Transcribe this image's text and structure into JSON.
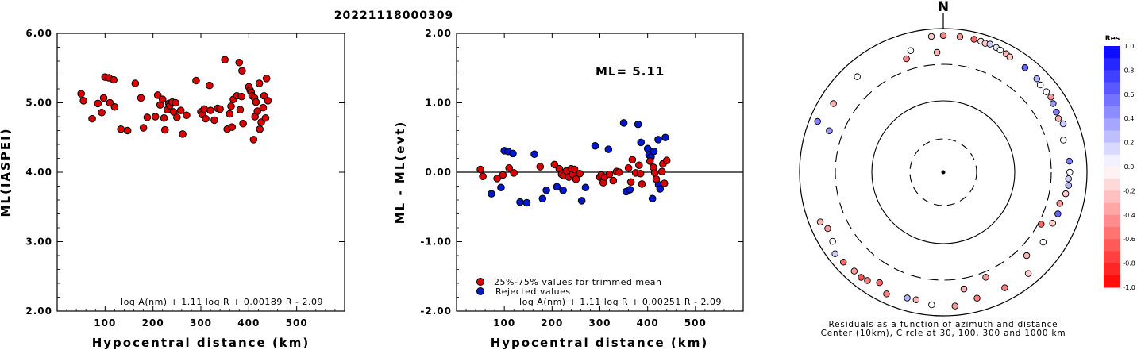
{
  "event_id": "20221118000309",
  "left": {
    "ylabel": "ML(IASPEI)",
    "xlabel": "Hypocentral distance (km)",
    "formula": "log A(nm) + 1.11 log R + 0.00189 R - 2.09",
    "xticks": [
      "100",
      "200",
      "300",
      "400",
      "500"
    ],
    "yticks": [
      "2.00",
      "3.00",
      "4.00",
      "5.00",
      "6.00"
    ]
  },
  "middle": {
    "ylabel": "ML - ML(evt)",
    "xlabel": "Hypocentral distance (km)",
    "ml_label": "ML= 5.11",
    "legend_trimmed": "25%-75% values for trimmed mean",
    "legend_rejected": "Rejected values",
    "formula": "log A(nm) + 1.11 log R + 0.00251 R - 2.09",
    "xticks": [
      "100",
      "200",
      "300",
      "400",
      "500"
    ],
    "yticks": [
      "-2.00",
      "-1.00",
      "0.00",
      "1.00",
      "2.00"
    ]
  },
  "polar": {
    "north": "N",
    "caption1": "Residuals as a function of azimuth and distance",
    "caption2": "Center (10km), Circle at 30, 100, 300 and 1000 km"
  },
  "colorbar": {
    "title": "Res",
    "ticks": [
      "1.0",
      "0.8",
      "0.6",
      "0.4",
      "0.2",
      "0.0",
      "-0.2",
      "-0.4",
      "-0.6",
      "-0.8",
      "-1.0"
    ]
  },
  "colors": {
    "trimmed": "#dd0000",
    "rejected": "#0018cc",
    "res_pos": "#0000ff",
    "res_neg": "#ff0000"
  },
  "chart_data": [
    {
      "type": "scatter",
      "title": "20221118000309",
      "xlabel": "Hypocentral distance (km)",
      "ylabel": "ML(IASPEI)",
      "xlim": [
        0,
        600
      ],
      "ylim": [
        2.0,
        6.0
      ],
      "series": [
        {
          "points": [
            [
              50,
              5.13
            ],
            [
              55,
              5.03
            ],
            [
              73,
              4.77
            ],
            [
              85,
              4.99
            ],
            [
              93,
              4.86
            ],
            [
              97,
              5.07
            ],
            [
              100,
              5.37
            ],
            [
              108,
              5.36
            ],
            [
              110,
              5.0
            ],
            [
              118,
              5.33
            ],
            [
              120,
              4.94
            ],
            [
              133,
              4.62
            ],
            [
              147,
              4.6
            ],
            [
              163,
              5.28
            ],
            [
              175,
              5.07
            ],
            [
              180,
              4.64
            ],
            [
              188,
              4.79
            ],
            [
              205,
              4.8
            ],
            [
              210,
              5.11
            ],
            [
              215,
              4.97
            ],
            [
              220,
              5.05
            ],
            [
              223,
              4.78
            ],
            [
              225,
              4.61
            ],
            [
              230,
              4.9
            ],
            [
              233,
              4.99
            ],
            [
              235,
              4.96
            ],
            [
              240,
              5.01
            ],
            [
              243,
              4.87
            ],
            [
              247,
              5.0
            ],
            [
              250,
              4.79
            ],
            [
              258,
              4.89
            ],
            [
              262,
              4.55
            ],
            [
              270,
              4.82
            ],
            [
              290,
              5.32
            ],
            [
              300,
              4.87
            ],
            [
              303,
              4.83
            ],
            [
              307,
              4.91
            ],
            [
              310,
              4.77
            ],
            [
              318,
              5.25
            ],
            [
              320,
              4.89
            ],
            [
              328,
              4.75
            ],
            [
              335,
              4.92
            ],
            [
              340,
              4.91
            ],
            [
              350,
              5.62
            ],
            [
              355,
              4.62
            ],
            [
              360,
              4.84
            ],
            [
              363,
              4.95
            ],
            [
              365,
              4.65
            ],
            [
              368,
              5.05
            ],
            [
              375,
              5.1
            ],
            [
              380,
              5.58
            ],
            [
              382,
              4.9
            ],
            [
              385,
              5.09
            ],
            [
              386,
              5.46
            ],
            [
              388,
              4.7
            ],
            [
              400,
              5.23
            ],
            [
              403,
              5.18
            ],
            [
              405,
              5.15
            ],
            [
              407,
              5.1
            ],
            [
              410,
              4.47
            ],
            [
              412,
              5.07
            ],
            [
              413,
              4.8
            ],
            [
              415,
              5.01
            ],
            [
              418,
              4.88
            ],
            [
              422,
              5.28
            ],
            [
              423,
              4.62
            ],
            [
              426,
              4.72
            ],
            [
              430,
              4.93
            ],
            [
              432,
              5.1
            ],
            [
              435,
              4.78
            ],
            [
              437,
              5.35
            ],
            [
              440,
              5.03
            ]
          ]
        }
      ]
    },
    {
      "type": "scatter",
      "ylabel": "ML - ML(evt)",
      "xlabel": "Hypocentral distance (km)",
      "xlim": [
        0,
        600
      ],
      "ylim": [
        -2.0,
        2.0
      ],
      "reference_line": 0.0,
      "series": [
        {
          "name": "25%-75% values for trimmed mean",
          "points": [
            [
              50,
              0.04
            ],
            [
              55,
              -0.06
            ],
            [
              85,
              -0.09
            ],
            [
              97,
              -0.04
            ],
            [
              110,
              0.06
            ],
            [
              120,
              -0.01
            ],
            [
              175,
              0.08
            ],
            [
              205,
              0.11
            ],
            [
              215,
              0.05
            ],
            [
              220,
              -0.03
            ],
            [
              225,
              -0.05
            ],
            [
              230,
              0.02
            ],
            [
              235,
              -0.07
            ],
            [
              240,
              0.05
            ],
            [
              243,
              -0.03
            ],
            [
              247,
              0.04
            ],
            [
              250,
              -0.1
            ],
            [
              258,
              -0.02
            ],
            [
              300,
              -0.07
            ],
            [
              303,
              -0.04
            ],
            [
              307,
              -0.15
            ],
            [
              310,
              -0.07
            ],
            [
              320,
              -0.03
            ],
            [
              328,
              -0.12
            ],
            [
              335,
              0.01
            ],
            [
              340,
              0.0
            ],
            [
              360,
              0.06
            ],
            [
              365,
              -0.14
            ],
            [
              368,
              0.18
            ],
            [
              375,
              -0.01
            ],
            [
              382,
              0.1
            ],
            [
              385,
              -0.02
            ],
            [
              388,
              -0.17
            ],
            [
              405,
              0.16
            ],
            [
              412,
              0.07
            ],
            [
              415,
              -0.01
            ],
            [
              418,
              -0.1
            ],
            [
              430,
              0.01
            ],
            [
              432,
              0.12
            ],
            [
              435,
              -0.16
            ],
            [
              440,
              0.17
            ]
          ]
        },
        {
          "name": "Rejected values",
          "points": [
            [
              73,
              -0.31
            ],
            [
              93,
              -0.22
            ],
            [
              100,
              0.31
            ],
            [
              108,
              0.3
            ],
            [
              118,
              0.27
            ],
            [
              133,
              -0.43
            ],
            [
              147,
              -0.44
            ],
            [
              163,
              0.26
            ],
            [
              180,
              -0.38
            ],
            [
              188,
              -0.26
            ],
            [
              210,
              -0.21
            ],
            [
              223,
              -0.26
            ],
            [
              262,
              -0.41
            ],
            [
              270,
              -0.22
            ],
            [
              290,
              0.38
            ],
            [
              318,
              0.33
            ],
            [
              350,
              0.71
            ],
            [
              355,
              -0.28
            ],
            [
              363,
              -0.25
            ],
            [
              380,
              0.69
            ],
            [
              386,
              0.43
            ],
            [
              400,
              0.34
            ],
            [
              403,
              0.25
            ],
            [
              407,
              0.22
            ],
            [
              410,
              -0.38
            ],
            [
              413,
              0.3
            ],
            [
              422,
              0.47
            ],
            [
              423,
              -0.18
            ],
            [
              426,
              -0.24
            ],
            [
              437,
              0.5
            ]
          ]
        }
      ]
    },
    {
      "type": "polar-scatter",
      "caption": "Residuals as a function of azimuth and distance",
      "circles_km": [
        30,
        100,
        300,
        1000
      ],
      "center_km": 10,
      "points": [
        [
          355,
          780,
          -0.2
        ],
        [
          0,
          790,
          -0.5
        ],
        [
          7,
          785,
          -0.4
        ],
        [
          13,
          785,
          -0.6
        ],
        [
          16,
          780,
          -0.1
        ],
        [
          18,
          760,
          -0.2
        ],
        [
          20,
          780,
          0.2
        ],
        [
          23,
          760,
          0.1
        ],
        [
          25,
          740,
          0.0
        ],
        [
          28,
          725,
          -0.3
        ],
        [
          30,
          700,
          -0.2
        ],
        [
          38,
          690,
          0.6
        ],
        [
          45,
          680,
          0.3
        ],
        [
          48,
          640,
          0.0
        ],
        [
          52,
          645,
          0.0
        ],
        [
          55,
          660,
          -0.4
        ],
        [
          58,
          620,
          0.4
        ],
        [
          62,
          590,
          0.5
        ],
        [
          65,
          570,
          -0.3
        ],
        [
          68,
          615,
          0.2
        ],
        [
          75,
          520,
          0.0
        ],
        [
          85,
          560,
          0.5
        ],
        [
          90,
          560,
          0.0
        ],
        [
          93,
          540,
          0.2
        ],
        [
          96,
          550,
          0.3
        ],
        [
          100,
          520,
          -0.2
        ],
        [
          105,
          460,
          -0.4
        ],
        [
          110,
          480,
          0.6
        ],
        [
          115,
          460,
          -0.2
        ],
        [
          118,
          330,
          -0.6
        ],
        [
          125,
          480,
          0.0
        ],
        [
          135,
          420,
          -0.3
        ],
        [
          140,
          680,
          -0.2
        ],
        [
          152,
          650,
          -0.5
        ],
        [
          158,
          360,
          -0.4
        ],
        [
          165,
          640,
          -0.5
        ],
        [
          170,
          430,
          -0.3
        ],
        [
          175,
          730,
          -0.4
        ],
        [
          185,
          700,
          0.0
        ],
        [
          192,
          640,
          -0.3
        ],
        [
          196,
          650,
          0.3
        ],
        [
          205,
          730,
          -0.5
        ],
        [
          210,
          580,
          -0.6
        ],
        [
          215,
          680,
          -0.5
        ],
        [
          218,
          710,
          -0.7
        ],
        [
          222,
          700,
          -0.4
        ],
        [
          228,
          730,
          -0.6
        ],
        [
          233,
          760,
          0.2
        ],
        [
          238,
          640,
          0.0
        ],
        [
          244,
          600,
          -0.4
        ],
        [
          248,
          690,
          -0.3
        ],
        [
          290,
          470,
          0.4
        ],
        [
          292,
          760,
          0.5
        ],
        [
          302,
          620,
          -0.3
        ],
        [
          318,
          600,
          0.0
        ],
        [
          342,
          440,
          -0.5
        ],
        [
          345,
          550,
          0.0
        ],
        [
          357,
          450,
          -0.3
        ]
      ]
    }
  ]
}
